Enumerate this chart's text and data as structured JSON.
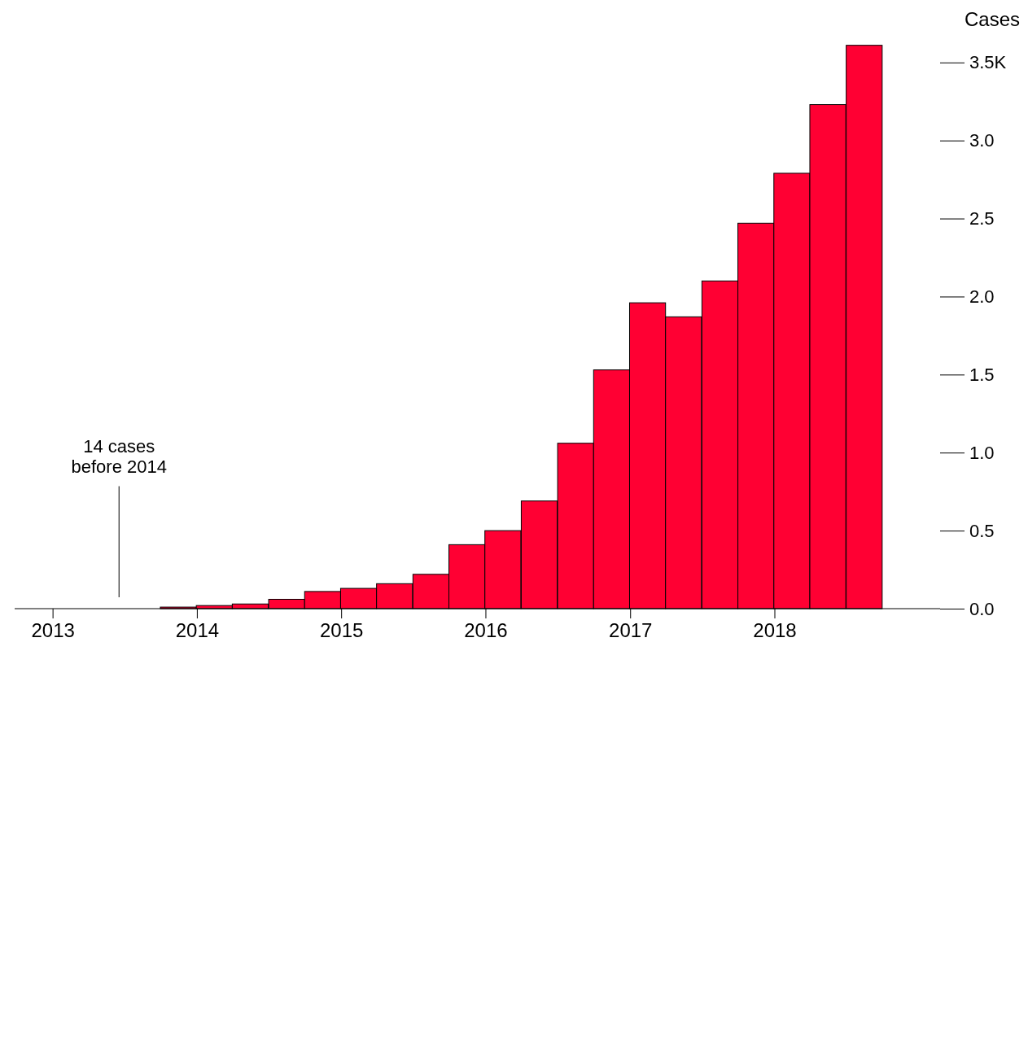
{
  "chart_data": {
    "type": "bar",
    "ylabel": "Cases",
    "color": "#ff0033",
    "x": [
      "2013-11-15",
      "2014-02-14",
      "2014-05-16",
      "2014-08-16",
      "2014-11-15",
      "2015-02-14",
      "2015-05-16",
      "2015-08-16",
      "2015-11-15",
      "2016-02-14",
      "2016-05-16",
      "2016-08-16",
      "2016-11-15",
      "2017-02-14",
      "2017-05-16",
      "2017-08-16",
      "2017-11-15",
      "2018-02-14",
      "2018-05-16",
      "2018-08-16"
    ],
    "values": [
      0.01,
      0.02,
      0.03,
      0.06,
      0.11,
      0.13,
      0.16,
      0.22,
      0.41,
      0.5,
      0.69,
      1.06,
      1.53,
      1.96,
      1.87,
      2.1,
      2.47,
      2.79,
      3.23,
      3.61
    ],
    "xlim": [
      "2012-09-27",
      "2019-02-24"
    ],
    "xticks": [
      {
        "value": "2013",
        "label": "2013"
      },
      {
        "value": "2014",
        "label": "2014"
      },
      {
        "value": "2015",
        "label": "2015"
      },
      {
        "value": "2016",
        "label": "2016"
      },
      {
        "value": "2017",
        "label": "2017"
      },
      {
        "value": "2018",
        "label": "2018"
      }
    ],
    "ylim": [
      0,
      3.65
    ],
    "yticks": [
      {
        "value": 0,
        "label": "0.0"
      },
      0.5,
      {
        "value": 1,
        "label": "1.0"
      },
      1.5,
      {
        "value": 2,
        "label": "2.0"
      },
      2.5,
      {
        "value": 3,
        "label": "3.0"
      },
      {
        "value": 3.5,
        "label": "3.5K"
      }
    ],
    "ref_lines": [
      {
        "axis": "x",
        "value": "2013-06-18",
        "label": "14 cases before 2014"
      }
    ],
    "grid": false
  }
}
